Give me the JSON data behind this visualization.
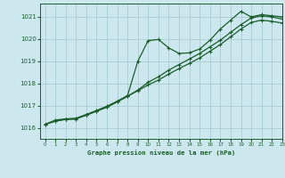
{
  "background_color": "#cce8ee",
  "grid_color": "#aaccd4",
  "line_color": "#1a5c2a",
  "title": "Graphe pression niveau de la mer (hPa)",
  "xlim": [
    -0.5,
    23
  ],
  "ylim": [
    1015.5,
    1021.6
  ],
  "yticks": [
    1016,
    1017,
    1018,
    1019,
    1020,
    1021
  ],
  "xticks": [
    0,
    1,
    2,
    3,
    4,
    5,
    6,
    7,
    8,
    9,
    10,
    11,
    12,
    13,
    14,
    15,
    16,
    17,
    18,
    19,
    20,
    21,
    22,
    23
  ],
  "series": [
    [
      1016.15,
      1016.35,
      1016.4,
      1016.43,
      1016.6,
      1016.78,
      1016.97,
      1017.2,
      1017.45,
      1019.0,
      1019.93,
      1019.98,
      1019.6,
      1019.35,
      1019.38,
      1019.55,
      1019.95,
      1020.45,
      1020.85,
      1021.25,
      1021.0,
      1021.1,
      1021.05,
      1021.0
    ],
    [
      1016.15,
      1016.3,
      1016.38,
      1016.4,
      1016.57,
      1016.75,
      1016.93,
      1017.17,
      1017.42,
      1017.7,
      1018.05,
      1018.3,
      1018.6,
      1018.85,
      1019.1,
      1019.35,
      1019.65,
      1019.95,
      1020.3,
      1020.65,
      1020.95,
      1021.05,
      1021.0,
      1020.9
    ],
    [
      1016.15,
      1016.3,
      1016.38,
      1016.4,
      1016.57,
      1016.75,
      1016.93,
      1017.17,
      1017.42,
      1017.67,
      1017.93,
      1018.15,
      1018.42,
      1018.67,
      1018.9,
      1019.15,
      1019.45,
      1019.75,
      1020.1,
      1020.45,
      1020.75,
      1020.85,
      1020.8,
      1020.72
    ]
  ]
}
